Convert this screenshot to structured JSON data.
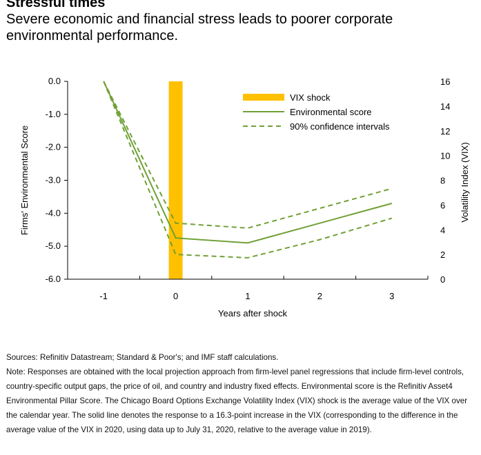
{
  "header": {
    "title": "Stressful times",
    "subtitle": "Severe economic and financial stress leads to poorer corporate environmental performance."
  },
  "chart_data": {
    "type": "line",
    "xlabel": "Years after shock",
    "ylabel": "Firms' Environmental Score",
    "y2label": "Volatility Index (VIX)",
    "x_ticks": [
      "-1",
      "0",
      "1",
      "2",
      "3"
    ],
    "y_ticks": [
      "0.0",
      "-1.0",
      "-2.0",
      "-3.0",
      "-4.0",
      "-5.0",
      "-6.0"
    ],
    "y2_ticks": [
      "16",
      "14",
      "12",
      "10",
      "8",
      "6",
      "4",
      "2",
      "0"
    ],
    "ylim": [
      -6,
      0
    ],
    "y2lim": [
      0,
      16
    ],
    "xlim": [
      -1.5,
      3.5
    ],
    "legend_position": "top-right",
    "legend": [
      "VIX shock",
      "Environmental score",
      "90% confidence intervals"
    ],
    "bars": [
      {
        "name": "VIX shock",
        "axis": "right",
        "x": 0,
        "value": 16.3,
        "color": "#FFC000"
      }
    ],
    "series": [
      {
        "name": "Environmental score",
        "style": "solid",
        "color": "#70A035",
        "x": [
          -1,
          0,
          1,
          2,
          3
        ],
        "values": [
          0.0,
          -4.75,
          -4.9,
          -4.3,
          -3.7
        ]
      },
      {
        "name": "90% confidence intervals",
        "style": "dashed",
        "color": "#70A035",
        "x": [
          -1,
          0,
          1,
          2,
          3
        ],
        "values": [
          0.0,
          -4.3,
          -4.45,
          -3.85,
          -3.25
        ]
      },
      {
        "name": "90% confidence intervals",
        "style": "dashed",
        "color": "#70A035",
        "x": [
          -1,
          0,
          1,
          2,
          3
        ],
        "values": [
          0.0,
          -5.25,
          -5.35,
          -4.8,
          -4.15
        ],
        "show_in_legend": false
      }
    ]
  },
  "footer": {
    "sources": "Sources: Refinitiv Datastream; Standard & Poor's; and IMF staff calculations.",
    "note": "Note: Responses are obtained with the local projection approach from firm-level panel regressions that include firm-level controls, country-specific output gaps, the price of oil, and country and industry fixed effects. Environmental score is the Refinitiv Asset4 Environmental Pillar Score. The Chicago Board Options Exchange Volatility Index (VIX) shock is the average value of the VIX over the calendar year. The solid line denotes the response to a 16.3-point increase in the VIX (corresponding to the difference in the average value of the VIX in 2020, using data up to July 31, 2020, relative to the average value in 2019)."
  }
}
